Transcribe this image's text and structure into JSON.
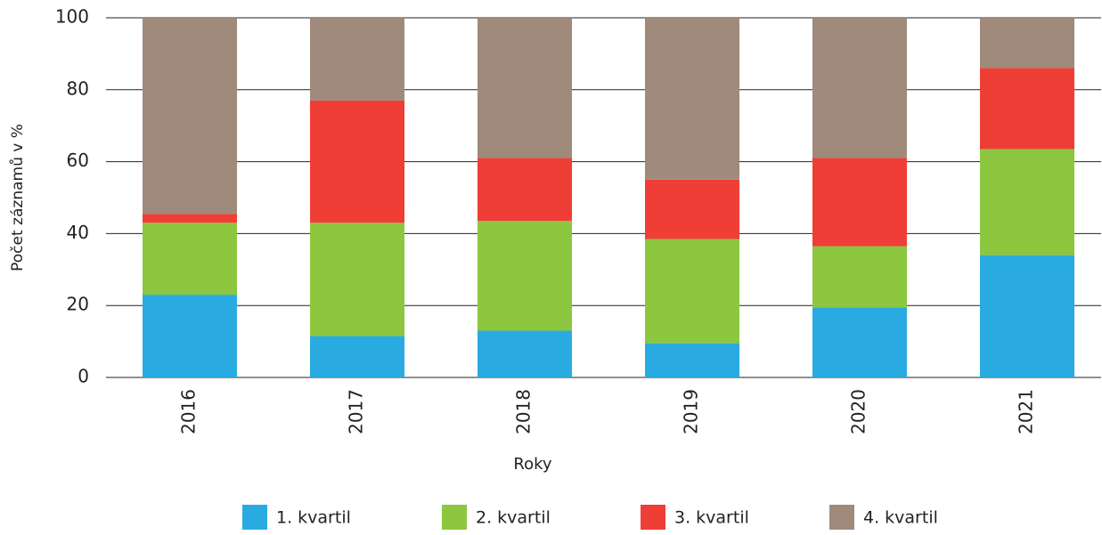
{
  "chart_data": {
    "type": "stacked_bar",
    "y_label": "Počet záznamů v %",
    "x_label": "Roky",
    "categories": [
      "2016",
      "2017",
      "2018",
      "2019",
      "2020",
      "2021"
    ],
    "series": [
      {
        "name": "1. kvartil",
        "color": "#29abe2",
        "values": [
          23,
          11.5,
          13,
          9.5,
          19.5,
          34
        ]
      },
      {
        "name": "2. kvartil",
        "color": "#8dc63f",
        "values": [
          20,
          31.5,
          30.5,
          29,
          17,
          29.5
        ]
      },
      {
        "name": "3. kvartil",
        "color": "#ef3e36",
        "values": [
          2.5,
          34,
          17.5,
          16.5,
          24.5,
          22.5
        ]
      },
      {
        "name": "4. kvartil",
        "color": "#a08a7b",
        "values": [
          54.5,
          23,
          39,
          45,
          39,
          14
        ]
      }
    ],
    "ylim": [
      0,
      100
    ],
    "yticks": [
      0,
      20,
      40,
      60,
      80,
      100
    ],
    "grid": true
  }
}
